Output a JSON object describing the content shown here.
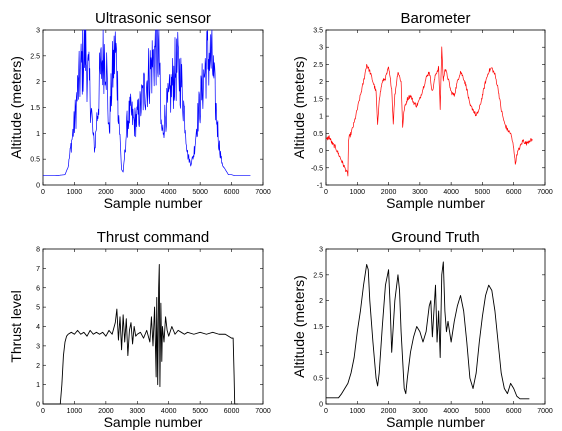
{
  "chart_data": [
    {
      "type": "line",
      "title": "Ultrasonic sensor",
      "xlabel": "Sample number",
      "ylabel": "Altitude (meters)",
      "xlim": [
        0,
        7000
      ],
      "ylim": [
        0,
        3
      ],
      "xticks": [
        "0",
        "1000",
        "2000",
        "3000",
        "4000",
        "5000",
        "6000",
        "7000"
      ],
      "yticks": [
        "0",
        "0.5",
        "1",
        "1.5",
        "2",
        "2.5",
        "3"
      ],
      "grid": false,
      "color": "#0000ff",
      "noisy": true,
      "series": [
        {
          "x": [
            0,
            400,
            700,
            800,
            900,
            1000,
            1100,
            1200,
            1300,
            1350,
            1400,
            1500,
            1600,
            1650,
            1700,
            1750,
            1800,
            1900,
            2000,
            2050,
            2100,
            2200,
            2300,
            2350,
            2400,
            2500,
            2550,
            2600,
            2650,
            2700,
            2800,
            2900,
            3000,
            3100,
            3200,
            3300,
            3400,
            3500,
            3600,
            3700,
            3750,
            3800,
            3900,
            4000,
            4100,
            4200,
            4300,
            4400,
            4500,
            4600,
            4700,
            4800,
            4900,
            5000,
            5100,
            5200,
            5300,
            5400,
            5500,
            5600,
            5700,
            5800,
            5900,
            6000,
            6100,
            6600
          ],
          "y": [
            0.18,
            0.18,
            0.2,
            0.35,
            0.8,
            1.2,
            1.8,
            2.2,
            2.5,
            2.65,
            2.3,
            1.8,
            0.9,
            0.7,
            1.2,
            1.5,
            2.0,
            2.5,
            2.6,
            1.8,
            1.0,
            2.1,
            2.6,
            2.3,
            1.5,
            0.3,
            0.25,
            0.6,
            1.0,
            1.3,
            1.4,
            1.2,
            1.3,
            1.5,
            1.8,
            2.0,
            2.2,
            2.4,
            2.7,
            2.5,
            1.2,
            1.0,
            1.4,
            1.6,
            1.9,
            2.2,
            2.3,
            2.0,
            1.4,
            0.6,
            0.4,
            0.6,
            1.2,
            1.6,
            2.0,
            2.4,
            2.5,
            2.3,
            1.5,
            0.8,
            0.4,
            0.3,
            0.2,
            0.2,
            0.18,
            0.18
          ]
        }
      ]
    },
    {
      "type": "line",
      "title": "Barometer",
      "xlabel": "Sample number",
      "ylabel": "Altitude (meters)",
      "xlim": [
        0,
        7000
      ],
      "ylim": [
        -1,
        3.5
      ],
      "xticks": [
        "0",
        "1000",
        "2000",
        "3000",
        "4000",
        "5000",
        "6000",
        "7000"
      ],
      "yticks": [
        "-1",
        "-0.5",
        "0",
        "0.5",
        "1",
        "1.5",
        "2",
        "2.5",
        "3",
        "3.5"
      ],
      "grid": false,
      "color": "#ff0000",
      "noisy": true,
      "series": [
        {
          "x": [
            0,
            100,
            200,
            300,
            400,
            500,
            600,
            700,
            720,
            750,
            800,
            900,
            1000,
            1100,
            1200,
            1300,
            1400,
            1500,
            1600,
            1650,
            1700,
            1800,
            1900,
            2000,
            2100,
            2150,
            2200,
            2300,
            2400,
            2450,
            2500,
            2600,
            2700,
            2800,
            2900,
            3000,
            3100,
            3200,
            3300,
            3400,
            3500,
            3600,
            3650,
            3700,
            3750,
            3800,
            3900,
            4000,
            4100,
            4200,
            4300,
            4400,
            4500,
            4600,
            4700,
            4800,
            4900,
            5000,
            5100,
            5200,
            5300,
            5400,
            5500,
            5600,
            5700,
            5800,
            5900,
            6000,
            6050,
            6100,
            6200,
            6300,
            6400,
            6500,
            6600
          ],
          "y": [
            0.3,
            0.4,
            0.2,
            0.1,
            -0.1,
            -0.3,
            -0.5,
            -0.7,
            0.3,
            0.4,
            0.5,
            0.8,
            1.2,
            1.6,
            2.0,
            2.5,
            2.3,
            2.0,
            1.7,
            0.7,
            1.5,
            2.0,
            2.1,
            2.4,
            1.8,
            0.8,
            1.6,
            2.3,
            2.0,
            0.7,
            1.2,
            1.5,
            1.6,
            1.4,
            1.3,
            1.5,
            1.8,
            2.1,
            2.3,
            1.7,
            2.2,
            2.4,
            1.2,
            3.0,
            2.0,
            2.4,
            2.1,
            1.7,
            1.6,
            2.0,
            2.3,
            2.1,
            1.8,
            1.3,
            1.2,
            1.0,
            1.2,
            1.6,
            2.0,
            2.3,
            2.4,
            2.2,
            1.8,
            1.2,
            0.8,
            0.6,
            0.5,
            0.1,
            -0.4,
            -0.1,
            0.1,
            0.3,
            0.2,
            0.3,
            0.3
          ]
        }
      ]
    },
    {
      "type": "line",
      "title": "Thrust command",
      "xlabel": "Sample number",
      "ylabel": "Thrust level",
      "xlim": [
        0,
        7000
      ],
      "ylim": [
        0,
        8
      ],
      "xticks": [
        "0",
        "1000",
        "2000",
        "3000",
        "4000",
        "5000",
        "6000",
        "7000"
      ],
      "yticks": [
        "0",
        "1",
        "2",
        "3",
        "4",
        "5",
        "6",
        "7",
        "8"
      ],
      "grid": false,
      "color": "#000000",
      "noisy": false,
      "series": [
        {
          "x": [
            0,
            400,
            550,
            600,
            650,
            700,
            750,
            800,
            900,
            1000,
            1100,
            1200,
            1300,
            1400,
            1500,
            1600,
            1700,
            1800,
            1900,
            2000,
            2100,
            2200,
            2300,
            2350,
            2400,
            2450,
            2500,
            2550,
            2600,
            2650,
            2700,
            2750,
            2800,
            2850,
            2900,
            2950,
            3000,
            3100,
            3200,
            3300,
            3400,
            3450,
            3500,
            3550,
            3600,
            3620,
            3650,
            3680,
            3700,
            3720,
            3750,
            3780,
            3800,
            3850,
            3900,
            3950,
            4000,
            4100,
            4200,
            4300,
            4400,
            4500,
            4600,
            4800,
            5000,
            5200,
            5400,
            5600,
            5800,
            6000,
            6050,
            6080,
            6100,
            6200
          ],
          "y": [
            0,
            0,
            0,
            1.0,
            2.5,
            3.2,
            3.5,
            3.6,
            3.7,
            3.6,
            3.8,
            3.6,
            3.7,
            3.5,
            3.8,
            3.6,
            3.7,
            3.6,
            3.7,
            3.5,
            3.8,
            3.6,
            4.2,
            4.9,
            3.3,
            4.5,
            2.8,
            4.6,
            3.2,
            4.4,
            2.5,
            3.8,
            4.2,
            3.1,
            4.0,
            3.5,
            3.6,
            3.7,
            3.4,
            3.8,
            3.2,
            4.5,
            3.0,
            5.0,
            1.4,
            5.5,
            1.0,
            6.0,
            7.2,
            0.9,
            5.2,
            2.2,
            4.0,
            3.2,
            4.5,
            3.8,
            3.5,
            4.0,
            3.6,
            3.8,
            3.7,
            3.6,
            3.7,
            3.6,
            3.7,
            3.6,
            3.7,
            3.6,
            3.6,
            3.4,
            3.4,
            1.5,
            0,
            0
          ]
        }
      ]
    },
    {
      "type": "line",
      "title": "Ground Truth",
      "xlabel": "Sample number",
      "ylabel": "Altitude (meters)",
      "xlim": [
        0,
        7000
      ],
      "ylim": [
        0,
        3
      ],
      "xticks": [
        "0",
        "1000",
        "2000",
        "3000",
        "4000",
        "5000",
        "6000",
        "7000"
      ],
      "yticks": [
        "0",
        "0.5",
        "1",
        "1.5",
        "2",
        "2.5",
        "3"
      ],
      "grid": false,
      "color": "#000000",
      "noisy": false,
      "series": [
        {
          "x": [
            0,
            100,
            400,
            500,
            600,
            700,
            800,
            900,
            1000,
            1100,
            1200,
            1300,
            1350,
            1400,
            1500,
            1600,
            1650,
            1700,
            1800,
            1900,
            2000,
            2050,
            2100,
            2200,
            2300,
            2350,
            2400,
            2500,
            2550,
            2600,
            2700,
            2800,
            2900,
            3000,
            3100,
            3200,
            3300,
            3350,
            3400,
            3500,
            3550,
            3600,
            3650,
            3700,
            3750,
            3800,
            3850,
            3900,
            4000,
            4100,
            4200,
            4300,
            4400,
            4500,
            4600,
            4700,
            4800,
            4900,
            5000,
            5100,
            5200,
            5300,
            5400,
            5500,
            5600,
            5700,
            5800,
            5900,
            6000,
            6100,
            6200,
            6500
          ],
          "y": [
            0.12,
            0.12,
            0.12,
            0.2,
            0.3,
            0.4,
            0.6,
            0.9,
            1.4,
            1.8,
            2.3,
            2.7,
            2.6,
            2.0,
            1.2,
            0.5,
            0.35,
            0.6,
            1.5,
            2.3,
            2.6,
            1.9,
            1.0,
            2.0,
            2.5,
            2.2,
            1.4,
            0.3,
            0.2,
            0.5,
            1.0,
            1.3,
            1.5,
            1.4,
            1.2,
            1.4,
            1.9,
            2.0,
            1.3,
            2.3,
            1.2,
            1.8,
            0.9,
            2.5,
            2.75,
            1.8,
            1.4,
            1.6,
            1.2,
            1.6,
            1.9,
            2.1,
            1.8,
            1.2,
            0.5,
            0.3,
            0.6,
            1.2,
            1.7,
            2.1,
            2.3,
            2.2,
            1.8,
            1.2,
            0.6,
            0.3,
            0.2,
            0.4,
            0.3,
            0.15,
            0.1,
            0.1
          ]
        }
      ]
    }
  ]
}
